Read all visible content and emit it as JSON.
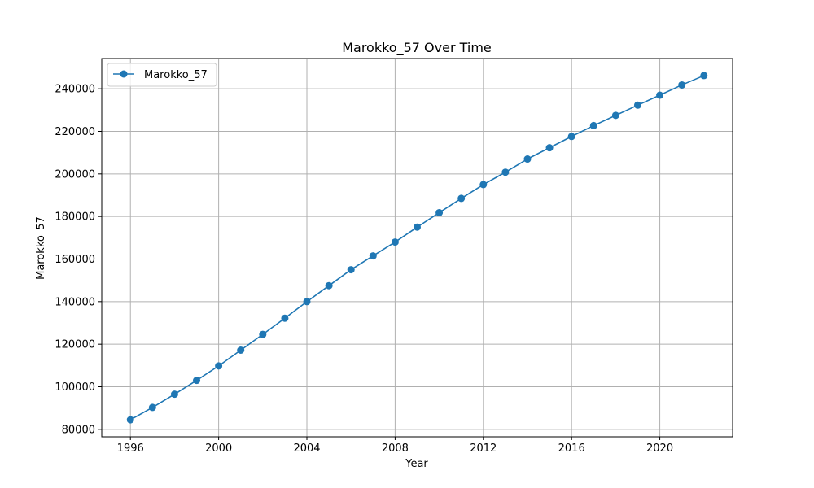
{
  "chart_data": {
    "type": "line",
    "title": "Marokko_57 Over Time",
    "xlabel": "Year",
    "ylabel": "Marokko_57",
    "x": [
      1996,
      1997,
      1998,
      1999,
      2000,
      2001,
      2002,
      2003,
      2004,
      2005,
      2006,
      2007,
      2008,
      2009,
      2010,
      2011,
      2012,
      2013,
      2014,
      2015,
      2016,
      2017,
      2018,
      2019,
      2020,
      2021,
      2022
    ],
    "series": [
      {
        "name": "Marokko_57",
        "color": "#1f77b4",
        "marker": "circle",
        "values": [
          84500,
          90300,
          96500,
          103000,
          109800,
          117200,
          124600,
          132200,
          140000,
          147500,
          155000,
          161500,
          168000,
          175000,
          181800,
          188500,
          195000,
          200800,
          207000,
          212300,
          217600,
          222700,
          227500,
          232300,
          237000,
          241800,
          246200
        ]
      }
    ],
    "xlim": [
      1994.7,
      2023.3
    ],
    "ylim": [
      76500,
      254200
    ],
    "xticks": [
      1996,
      2000,
      2004,
      2008,
      2012,
      2016,
      2020
    ],
    "yticks": [
      80000,
      100000,
      120000,
      140000,
      160000,
      180000,
      200000,
      220000,
      240000
    ],
    "grid": true,
    "legend_position": "top-left"
  }
}
